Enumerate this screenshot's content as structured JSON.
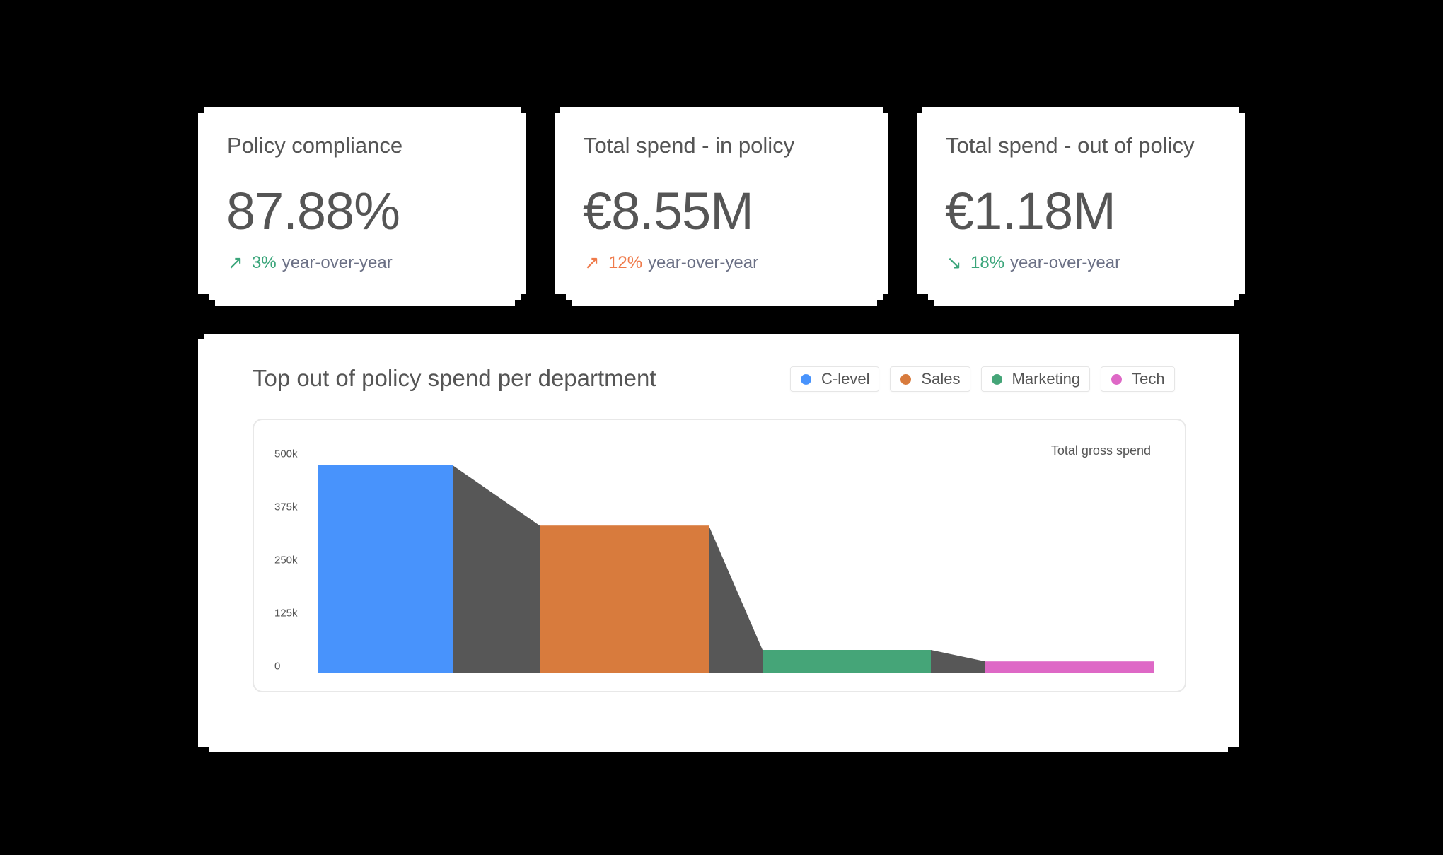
{
  "kpis": [
    {
      "title": "Policy compliance",
      "value": "87.88%",
      "arrow": "↗",
      "arrow_icon": "arrow-up-right-icon",
      "change": "3%",
      "change_color": "#3aa57a",
      "suffix": "year-over-year"
    },
    {
      "title": "Total spend - in policy",
      "value": "€8.55M",
      "arrow": "↗",
      "arrow_icon": "arrow-up-right-icon",
      "change": "12%",
      "change_color": "#ef7a4a",
      "suffix": "year-over-year"
    },
    {
      "title": "Total spend - out of policy",
      "value": "€1.18M",
      "arrow": "↘",
      "arrow_icon": "arrow-down-right-icon",
      "change": "18%",
      "change_color": "#3aa57a",
      "suffix": "year-over-year"
    }
  ],
  "chart_panel": {
    "title": "Top out of policy spend per department",
    "legend": [
      {
        "label": "C-level",
        "color": "#4893fc"
      },
      {
        "label": "Sales",
        "color": "#d87b3d"
      },
      {
        "label": "Marketing",
        "color": "#45a578"
      },
      {
        "label": "Tech",
        "color": "#de68c6"
      }
    ],
    "series_note": "Total gross spend",
    "y_ticks": [
      "500k",
      "375k",
      "250k",
      "125k",
      "0"
    ],
    "connector_color": "#575757"
  },
  "chart_data": {
    "type": "bar",
    "title": "Top out of policy spend per department",
    "categories": [
      "C-level",
      "Sales",
      "Marketing",
      "Tech"
    ],
    "values": [
      490000,
      348000,
      55000,
      28000
    ],
    "colors": [
      "#4893fc",
      "#d87b3d",
      "#45a578",
      "#de68c6"
    ],
    "ylabel": "",
    "xlabel": "",
    "series_label": "Total gross spend",
    "ylim": [
      0,
      500000
    ],
    "y_ticks": [
      0,
      125000,
      250000,
      375000,
      500000
    ],
    "grid": false,
    "legend_position": "top-right",
    "connectors": "dark gray trapezoids linking adjacent bar tops"
  }
}
